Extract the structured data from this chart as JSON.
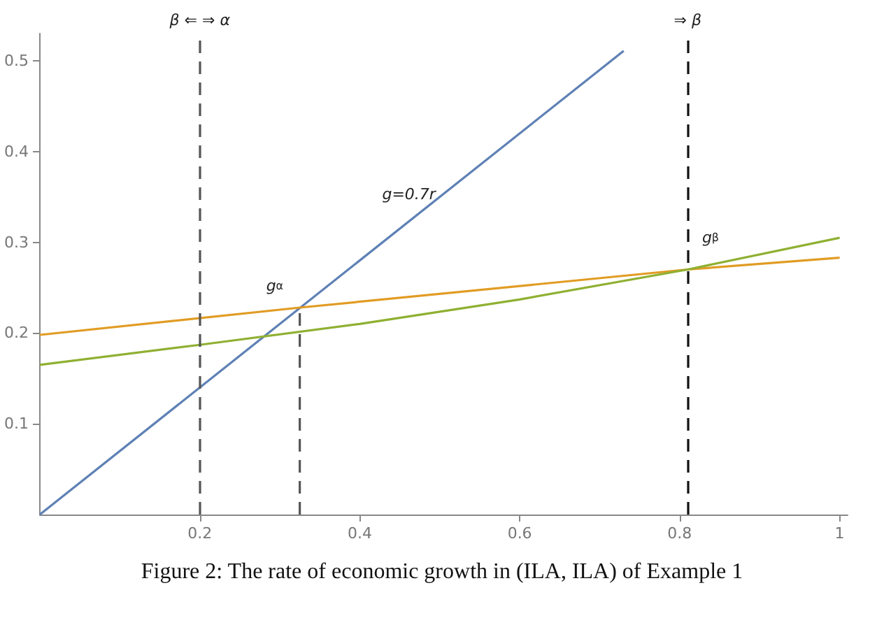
{
  "chart_data": {
    "type": "line",
    "title": "Figure 2: The rate of economic growth in (ILA, ILA) of Example 1",
    "xlim": [
      0,
      1.01
    ],
    "xticks": [
      0.2,
      0.4,
      0.6,
      0.8,
      1.0
    ],
    "ylim": [
      0,
      0.53
    ],
    "yticks": [
      0.1,
      0.2,
      0.3,
      0.4,
      0.5
    ],
    "grid": false,
    "marker": "none",
    "line_style": "solid",
    "series": [
      {
        "color": "#5e81b5",
        "x": [
          0,
          0.73
        ],
        "values": [
          0,
          0.511
        ]
      },
      {
        "color": "#e19c24",
        "x": [
          0,
          0.325,
          0.81,
          1.0
        ],
        "values": [
          0.198,
          0.228,
          0.27,
          0.283
        ]
      },
      {
        "color": "#8fb032",
        "x": [
          0,
          0.2,
          0.4,
          0.6,
          0.81,
          1.0
        ],
        "values": [
          0.165,
          0.187,
          0.21,
          0.237,
          0.27,
          0.305
        ]
      },
      {
        "color": "#555555",
        "x": [
          0.325,
          0.325
        ],
        "values": [
          0,
          0.228
        ],
        "line_style": "dashed"
      }
    ],
    "ref_lines": [
      {
        "axis": "x",
        "value": 0.197,
        "color": "#555555",
        "line_style": "dashed",
        "label": "β ⇐ ⇒ α"
      },
      {
        "axis": "x",
        "value": 0.811,
        "color": "#111111",
        "line_style": "dashed",
        "label": "⇒ β"
      }
    ],
    "annotations": [
      {
        "text": "g=0.7r",
        "x": 0.47,
        "y": 0.329
      },
      {
        "text": "g$_{α}$",
        "x": 0.325,
        "y": 0.228
      },
      {
        "text": "g$_{β}$",
        "x": 0.87,
        "y": 0.281
      }
    ]
  }
}
